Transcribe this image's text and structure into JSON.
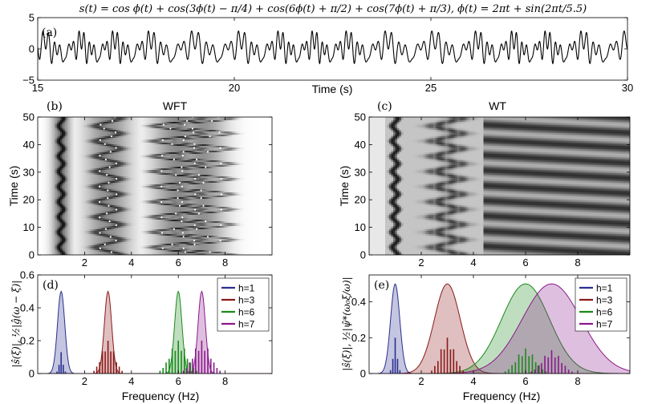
{
  "title": "s(t) = cos ϕ(t) + cos(3ϕ(t) − π/4) + cos(6ϕ(t) + π/2) + cos(7ϕ(t) + π/3),  ϕ(t) = 2πt + sin(2πt/5.5)",
  "chart_data": [
    {
      "type": "line",
      "panel": "(a)",
      "xlabel": "Time (s)",
      "ylabel": "",
      "xlim": [
        15,
        30
      ],
      "ylim": [
        -5,
        5
      ],
      "xticks": [
        "15",
        "20",
        "25",
        "30"
      ],
      "yticks": [
        "5",
        "0",
        "−5"
      ],
      "series": [
        {
          "name": "s(t)",
          "formula": "cos ϕ + cos(3ϕ−π/4) + cos(6ϕ+π/2) + cos(7ϕ+π/3)"
        }
      ]
    },
    {
      "type": "heatmap",
      "panel": "(b)",
      "title": "WFT",
      "xlabel": "",
      "ylabel": "Time (s)",
      "xlim": [
        0,
        10
      ],
      "ylim": [
        0,
        50
      ],
      "xticks": [
        "2",
        "4",
        "6",
        "8"
      ],
      "yticks": [
        "0",
        "10",
        "20",
        "30",
        "40",
        "50"
      ]
    },
    {
      "type": "heatmap",
      "panel": "(c)",
      "title": "WT",
      "xlabel": "",
      "ylabel": "Time (s)",
      "xlim": [
        0,
        10
      ],
      "ylim": [
        0,
        50
      ],
      "xticks": [
        "2",
        "4",
        "6",
        "8"
      ],
      "yticks": [
        "0",
        "10",
        "20",
        "30",
        "40",
        "50"
      ]
    },
    {
      "type": "area",
      "panel": "(d)",
      "xlabel": "Frequency (Hz)",
      "ylabel": "|ŝ(ξ)|, ½|ĝ(ω − ξ)|",
      "xlim": [
        0,
        10
      ],
      "ylim": [
        0,
        0.6
      ],
      "xticks": [
        "2",
        "4",
        "6",
        "8"
      ],
      "yticks": [
        "0",
        "0.2",
        "0.4",
        "0.6"
      ],
      "legend_position": "top-right",
      "series": [
        {
          "name": "h=1",
          "color": "#2a2f8f",
          "center": 1.0,
          "width": 0.22,
          "peak": 0.5
        },
        {
          "name": "h=3",
          "color": "#8b1a1a",
          "center": 3.0,
          "width": 0.22,
          "peak": 0.5
        },
        {
          "name": "h=6",
          "color": "#1a8a1a",
          "center": 6.0,
          "width": 0.22,
          "peak": 0.5
        },
        {
          "name": "h=7",
          "color": "#8b1a8b",
          "center": 7.0,
          "width": 0.22,
          "peak": 0.5
        }
      ]
    },
    {
      "type": "area",
      "panel": "(e)",
      "xlabel": "Frequency (Hz)",
      "ylabel": "|ŝ(ξ)|, ½|ψ̂*(ω₀ξ/ω)|",
      "xlim": [
        0,
        10
      ],
      "ylim": [
        0,
        0.55
      ],
      "xticks": [
        "2",
        "4",
        "6",
        "8"
      ],
      "yticks": [
        "0",
        "0.2",
        "0.4"
      ],
      "legend_position": "top-right",
      "series": [
        {
          "name": "h=1",
          "color": "#2a2f8f",
          "center": 1.0,
          "width": 0.25,
          "peak": 0.5
        },
        {
          "name": "h=3",
          "color": "#8b1a1a",
          "center": 3.0,
          "width": 0.7,
          "peak": 0.5
        },
        {
          "name": "h=6",
          "color": "#1a8a1a",
          "center": 6.0,
          "width": 1.3,
          "peak": 0.5
        },
        {
          "name": "h=7",
          "color": "#8b1a8b",
          "center": 7.0,
          "width": 1.6,
          "peak": 0.5
        }
      ]
    }
  ]
}
